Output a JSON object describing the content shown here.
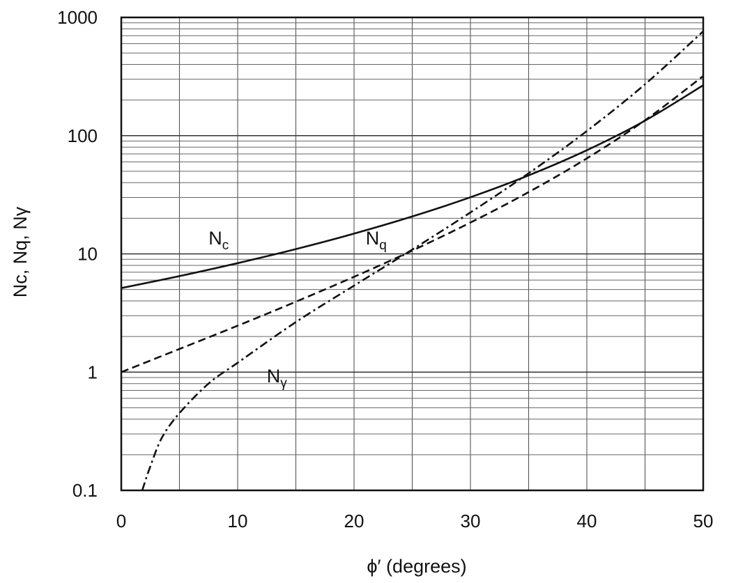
{
  "chart_data": {
    "type": "line",
    "xlabel": "ϕ′ (degrees)",
    "ylabel": "Nc, Nq, Nγ",
    "xlim": [
      0,
      50
    ],
    "ylim": [
      0.1,
      1000
    ],
    "yscale": "log",
    "grid": true,
    "x_ticks": [
      0,
      10,
      20,
      30,
      40,
      50
    ],
    "x_tick_labels": [
      "0",
      "10",
      "20",
      "30",
      "40",
      "50"
    ],
    "y_ticks": [
      0.1,
      1,
      10,
      100,
      1000
    ],
    "y_tick_labels": [
      "0.1",
      "1",
      "10",
      "100",
      "1000"
    ],
    "series": [
      {
        "name": "Nc",
        "label_main": "N",
        "label_sub": "c",
        "line_style": "solid",
        "x": [
          0,
          5,
          10,
          15,
          20,
          25,
          30,
          35,
          40,
          45,
          50
        ],
        "y": [
          5.14,
          6.49,
          8.35,
          10.98,
          14.83,
          20.72,
          30.14,
          46.12,
          75.31,
          133.88,
          266.89
        ]
      },
      {
        "name": "Nq",
        "label_main": "N",
        "label_sub": "q",
        "line_style": "dashed",
        "x": [
          0,
          5,
          10,
          15,
          20,
          25,
          30,
          35,
          40,
          45,
          50
        ],
        "y": [
          1.0,
          1.57,
          2.47,
          3.94,
          6.4,
          10.66,
          18.4,
          33.3,
          64.2,
          134.9,
          319.1
        ]
      },
      {
        "name": "Nγ",
        "label_main": "N",
        "label_sub": "γ",
        "line_style": "dash-dot",
        "x": [
          1.8,
          2.5,
          3.5,
          5,
          7.5,
          10,
          15,
          20,
          25,
          30,
          35,
          40,
          45,
          50
        ],
        "y": [
          0.1,
          0.16,
          0.28,
          0.45,
          0.8,
          1.2,
          2.65,
          5.39,
          10.88,
          22.4,
          48.03,
          109.41,
          271.76,
          762.89
        ]
      }
    ]
  }
}
